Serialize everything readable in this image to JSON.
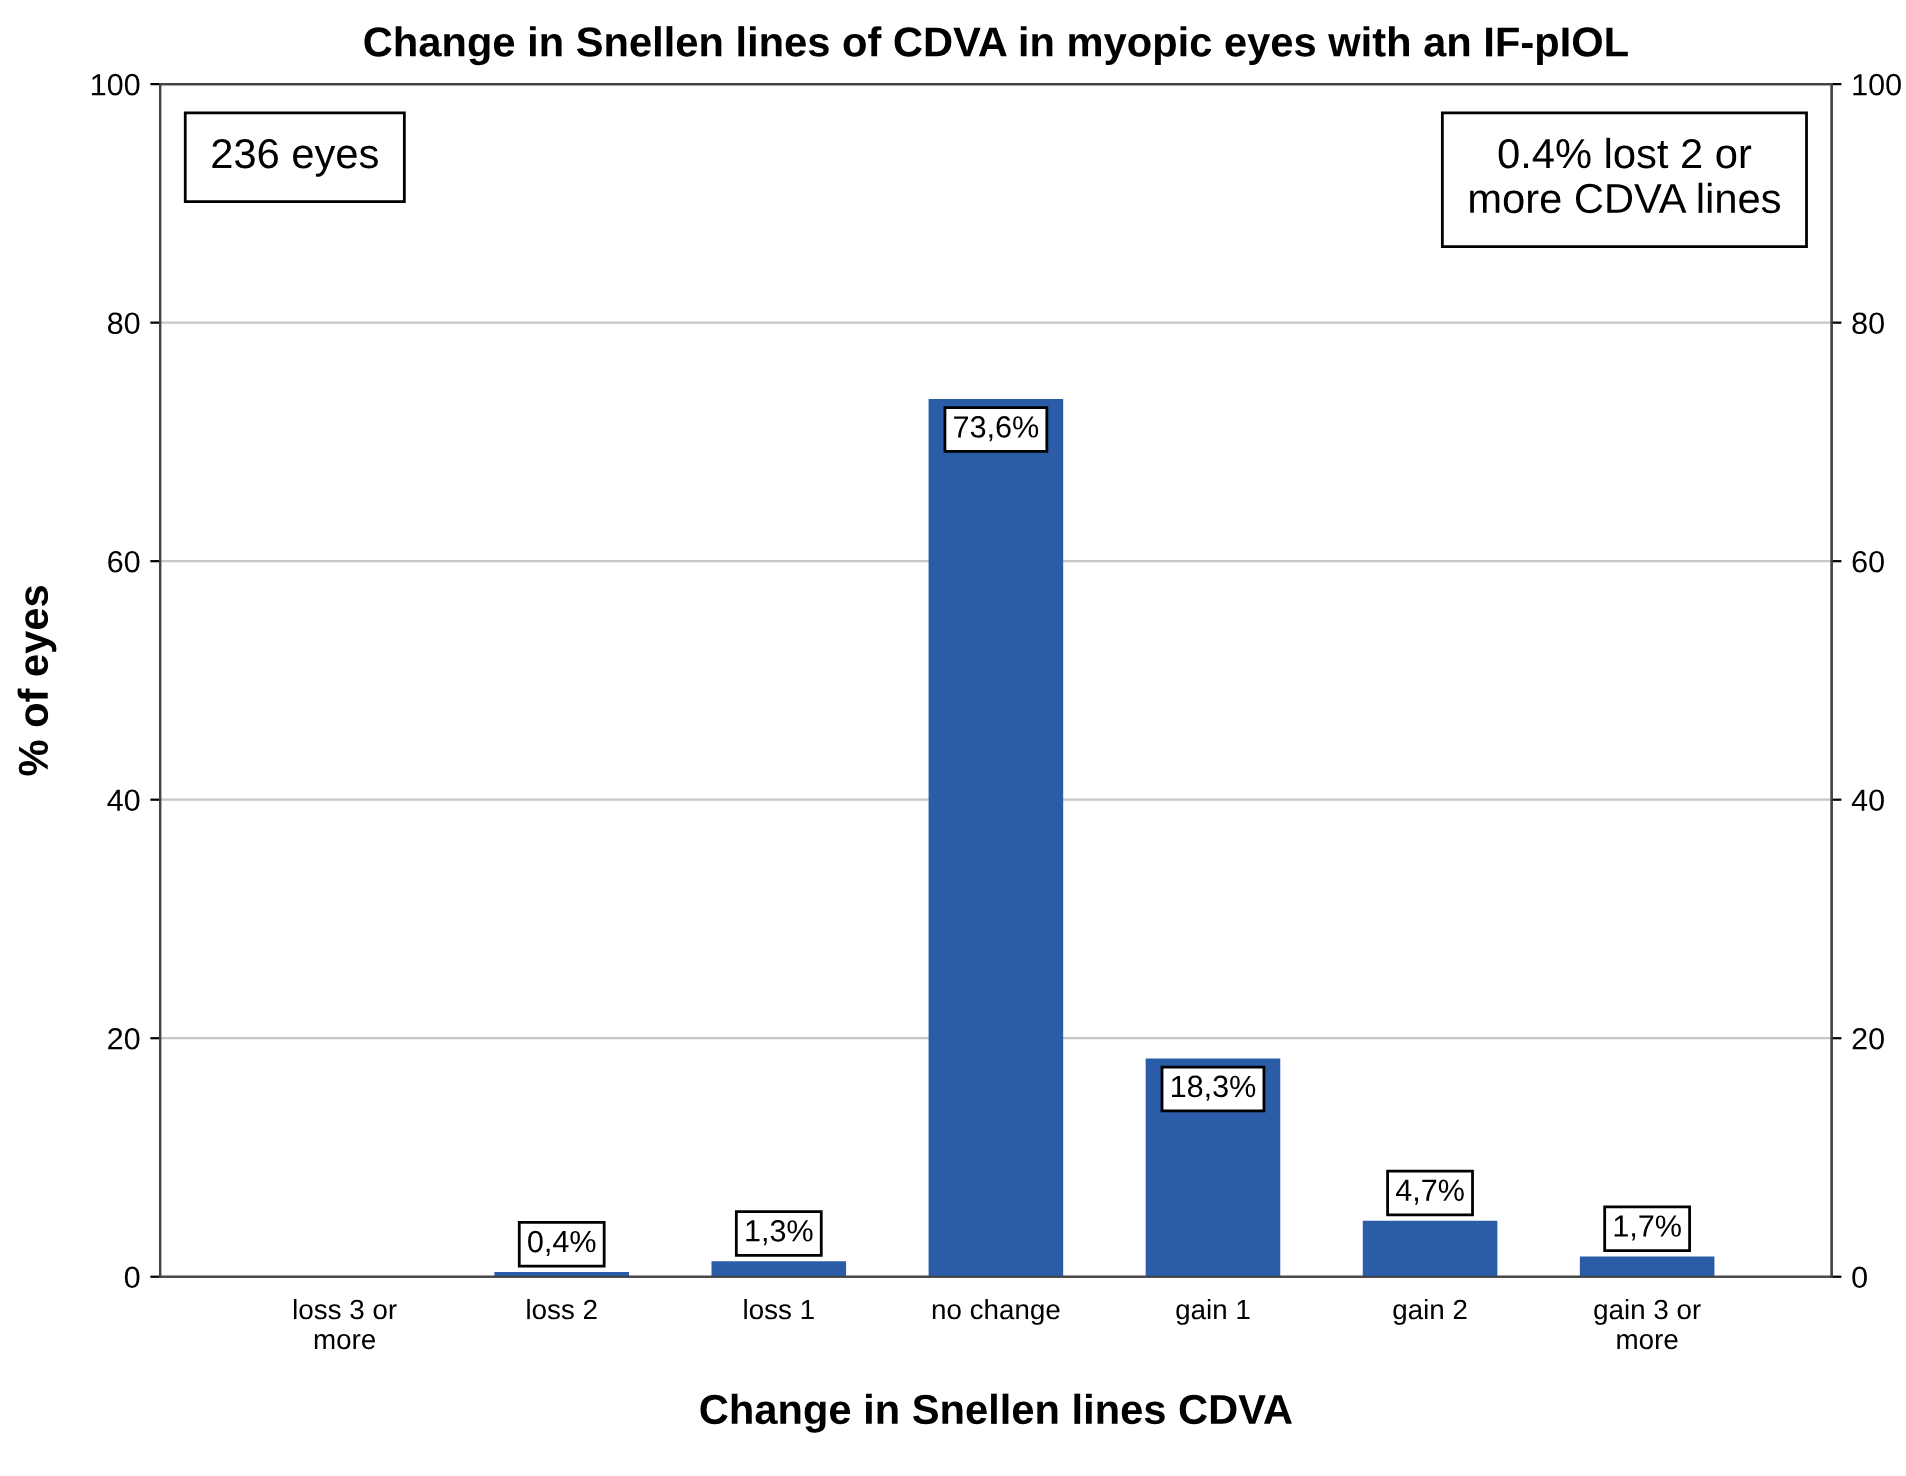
{
  "chart_data": {
    "type": "bar",
    "title": "Change in Snellen lines of CDVA in myopic eyes with an IF-pIOL",
    "xlabel": "Change in Snellen lines CDVA",
    "ylabel": "% of eyes",
    "categories": [
      "loss 3 or\nmore",
      "loss 2",
      "loss 1",
      "no change",
      "gain 1",
      "gain 2",
      "gain 3 or\nmore"
    ],
    "values": [
      0,
      0.4,
      1.3,
      73.6,
      18.3,
      4.7,
      1.7
    ],
    "value_labels": [
      null,
      "0,4%",
      "1,3%",
      "73,6%",
      "18,3%",
      "4,7%",
      "1,7%"
    ],
    "color": "#2a5ca8",
    "ylim": [
      0,
      100
    ],
    "yticks": [
      0,
      20,
      40,
      60,
      80,
      100
    ],
    "y2lim": [
      0,
      100
    ],
    "y2ticks": [
      0,
      20,
      40,
      60,
      80,
      100
    ],
    "grid": "y",
    "legend": false,
    "annotations": [
      "236 eyes",
      "0.4% lost 2 or\nmore CDVA lines"
    ]
  }
}
